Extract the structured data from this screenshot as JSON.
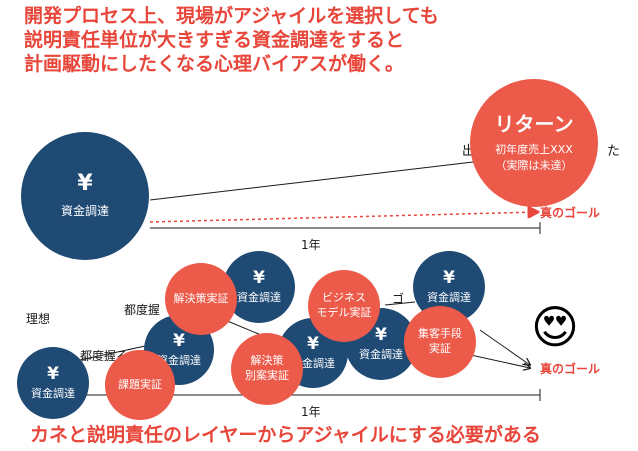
{
  "headline": [
    "開発プロセス上、現場がアジャイルを選択しても",
    "説明責任単位が大きすぎる資金調達をすると",
    "計画駆動にしたくなる心理バイアスが働く。"
  ],
  "footer": "カネと説明責任のレイヤーからアジャイルにする必要がある",
  "top_diagram": {
    "funding": {
      "symbol": "¥",
      "label": "資金調達"
    },
    "return": {
      "title": "リターン",
      "line1": "初年度売上XXX",
      "line2": "（実際は未達）"
    },
    "partial_label_left": "出",
    "partial_label_right": "た",
    "goal_label": "真のゴール",
    "year_label": "1年"
  },
  "bottom_diagram": {
    "ideal_label": "理想",
    "tsudo_label_1": "都度握",
    "tsudo_label_2": "都度握る",
    "goal_partial": "ゴ",
    "funding_label": "資金調達",
    "funding_symbol": "¥",
    "actions": {
      "issue": "課題実証",
      "solution": "解決策実証",
      "business_line1": "ビジネス",
      "business_line2": "モデル実証",
      "alt_line1": "解決策",
      "alt_line2": "別案実証",
      "acq_line1": "集客手段",
      "acq_line2": "実証"
    },
    "goal_label": "真のゴール",
    "year_label": "1年",
    "emoji": "😍"
  },
  "colors": {
    "accent_red": "#e8463a",
    "navy": "#1e4a74",
    "action_red": "#ec5a4a"
  }
}
